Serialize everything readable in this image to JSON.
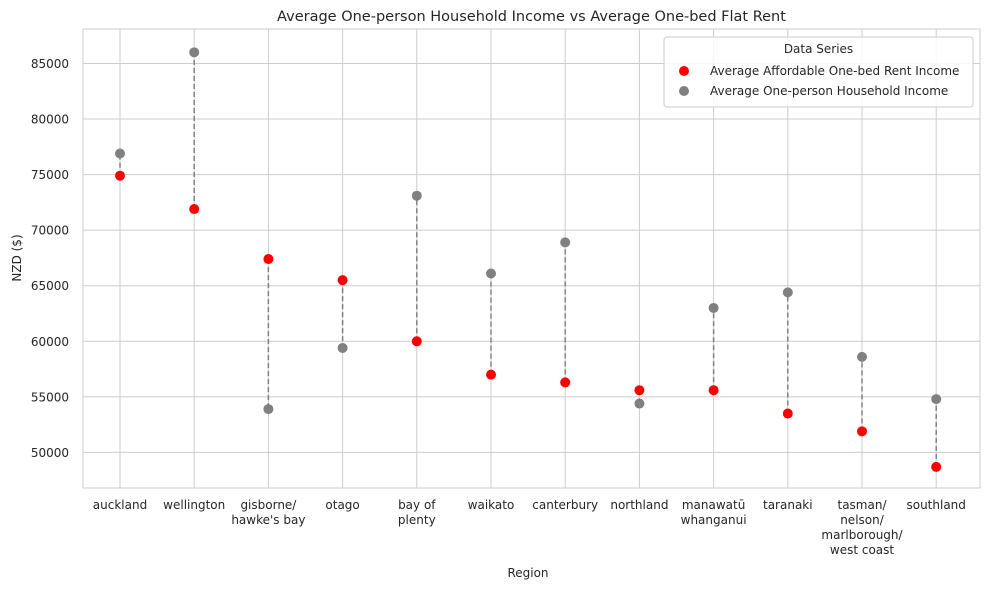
{
  "chart_data": {
    "type": "scatter",
    "title": "Average One-person Household Income vs Average One-bed Flat Rent",
    "xlabel": "Region",
    "ylabel": "NZD ($)",
    "ylim": [
      46800,
      88100
    ],
    "yticks": [
      50000,
      55000,
      60000,
      65000,
      70000,
      75000,
      80000,
      85000
    ],
    "grid": true,
    "legend": {
      "title": "Data Series",
      "placement": "top-right"
    },
    "categories": [
      [
        "auckland"
      ],
      [
        "wellington"
      ],
      [
        "gisborne/",
        "hawke's bay"
      ],
      [
        "otago"
      ],
      [
        "bay of",
        "plenty"
      ],
      [
        "waikato"
      ],
      [
        "canterbury"
      ],
      [
        "northland"
      ],
      [
        "manawatū",
        "whanganui"
      ],
      [
        "taranaki"
      ],
      [
        "tasman/",
        "nelson/",
        "marlborough/",
        "west coast"
      ],
      [
        "southland"
      ]
    ],
    "series": [
      {
        "name": "Average Affordable One-bed Rent Income",
        "color": "#ff0000",
        "values": [
          74900,
          71900,
          67400,
          65500,
          60000,
          57000,
          56300,
          55600,
          55600,
          53500,
          51900,
          48700
        ]
      },
      {
        "name": "Average One-person Household Income",
        "color": "#808080",
        "values": [
          76900,
          86000,
          53900,
          59400,
          73100,
          66100,
          68900,
          54400,
          63000,
          64400,
          58600,
          54800
        ]
      }
    ],
    "connector": {
      "style": "dashed",
      "color": "#808080"
    }
  }
}
